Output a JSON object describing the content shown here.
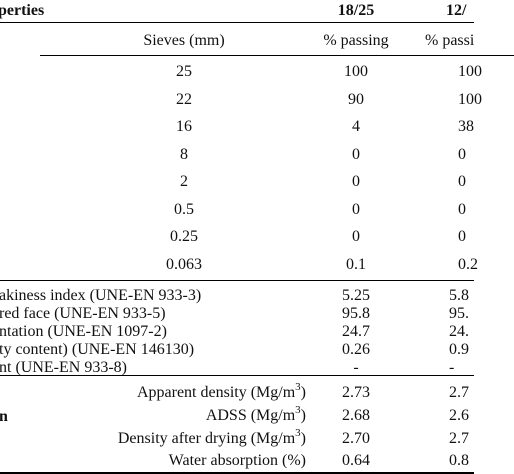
{
  "header": {
    "properties": "perties",
    "col1": "18/25",
    "col2": "12/"
  },
  "sieve_header": {
    "label": "Sieves (mm)",
    "col1": "% passing",
    "col2": "% passi"
  },
  "sieves": [
    {
      "size": "25",
      "v1": "100",
      "v2": "100"
    },
    {
      "size": "22",
      "v1": "90",
      "v2": "100"
    },
    {
      "size": "16",
      "v1": "4",
      "v2": "38"
    },
    {
      "size": "8",
      "v1": "0",
      "v2": "0"
    },
    {
      "size": "2",
      "v1": "0",
      "v2": "0"
    },
    {
      "size": "0.5",
      "v1": "0",
      "v2": "0"
    },
    {
      "size": "0.25",
      "v1": "0",
      "v2": "0"
    },
    {
      "size": "0.063",
      "v1": "0.1",
      "v2": "0.2"
    }
  ],
  "properties": [
    {
      "label": "akiness index (UNE-EN 933-3)",
      "v1": "5.25",
      "v2": "5.8"
    },
    {
      "label": "red face (UNE-EN 933-5)",
      "v1": "95.8",
      "v2": "95."
    },
    {
      "label": "ntation (UNE-EN 1097-2)",
      "v1": "24.7",
      "v2": "24."
    },
    {
      "label": "ty content) (UNE-EN 146130)",
      "v1": "0.26",
      "v2": "0.9"
    },
    {
      "label": "nt (UNE-EN 933-8)",
      "v1": "-",
      "v2": "-"
    }
  ],
  "density_group_label": "n",
  "density": [
    {
      "label": "Apparent density (Mg/m",
      "sup": "3",
      "close": ")",
      "v1": "2.73",
      "v2": "2.7"
    },
    {
      "label": "ADSS (Mg/m",
      "sup": "3",
      "close": ")",
      "v1": "2.68",
      "v2": "2.6"
    },
    {
      "label": "Density after drying (Mg/m",
      "sup": "3",
      "close": ")",
      "v1": "2.70",
      "v2": "2.7"
    },
    {
      "label": "Water absorption (%)",
      "sup": "",
      "close": "",
      "v1": "0.64",
      "v2": "0.8"
    }
  ]
}
